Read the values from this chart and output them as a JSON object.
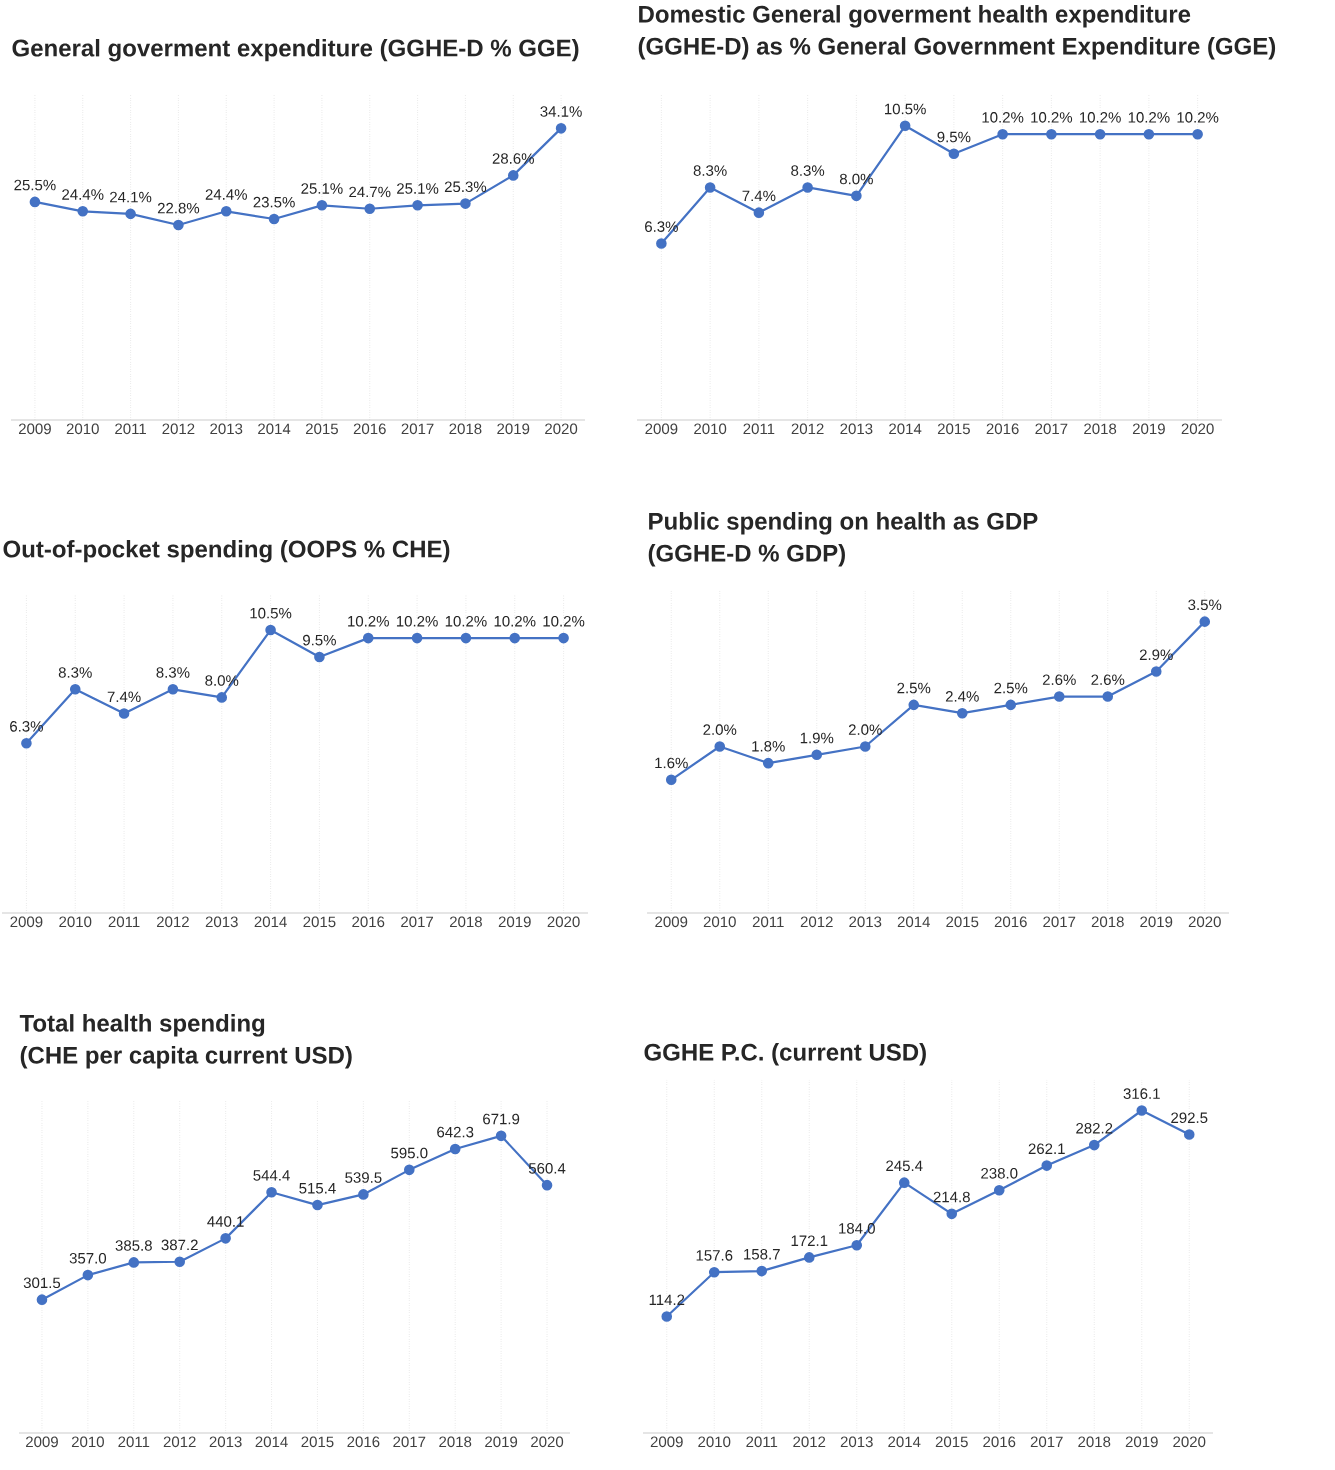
{
  "chart_data": [
    {
      "type": "line",
      "title": "General goverment expenditure (GGHE-D % GGE)",
      "categories": [
        "2009",
        "2010",
        "2011",
        "2012",
        "2013",
        "2014",
        "2015",
        "2016",
        "2017",
        "2018",
        "2019",
        "2020"
      ],
      "values": [
        25.5,
        24.4,
        24.1,
        22.8,
        24.4,
        23.5,
        25.1,
        24.7,
        25.1,
        25.3,
        28.6,
        34.1
      ],
      "value_labels": [
        "25.5%",
        "24.4%",
        "24.1%",
        "22.8%",
        "24.4%",
        "23.5%",
        "25.1%",
        "24.7%",
        "25.1%",
        "25.3%",
        "28.6%",
        "34.1%"
      ],
      "color": "#4472c4",
      "marker": "circle",
      "grid": "x",
      "ylim": [
        0,
        38
      ]
    },
    {
      "type": "line",
      "title": "Domestic General goverment health expenditure",
      "subtitle": "(GGHE-D) as % General Government Expenditure (GGE)",
      "categories": [
        "2009",
        "2010",
        "2011",
        "2012",
        "2013",
        "2014",
        "2015",
        "2016",
        "2017",
        "2018",
        "2019",
        "2020"
      ],
      "values": [
        6.3,
        8.3,
        7.4,
        8.3,
        8.0,
        10.5,
        9.5,
        10.2,
        10.2,
        10.2,
        10.2,
        10.2
      ],
      "value_labels": [
        "6.3%",
        "8.3%",
        "7.4%",
        "8.3%",
        "8.0%",
        "10.5%",
        "9.5%",
        "10.2%",
        "10.2%",
        "10.2%",
        "10.2%",
        "10.2%"
      ],
      "color": "#4472c4",
      "marker": "circle",
      "grid": "x",
      "ylim": [
        0,
        11.6
      ]
    },
    {
      "type": "line",
      "title": "Out-of-pocket spending (OOPS % CHE)",
      "categories": [
        "2009",
        "2010",
        "2011",
        "2012",
        "2013",
        "2014",
        "2015",
        "2016",
        "2017",
        "2018",
        "2019",
        "2020"
      ],
      "values": [
        6.3,
        8.3,
        7.4,
        8.3,
        8.0,
        10.5,
        9.5,
        10.2,
        10.2,
        10.2,
        10.2,
        10.2
      ],
      "value_labels": [
        "6.3%",
        "8.3%",
        "7.4%",
        "8.3%",
        "8.0%",
        "10.5%",
        "9.5%",
        "10.2%",
        "10.2%",
        "10.2%",
        "10.2%",
        "10.2%"
      ],
      "color": "#4472c4",
      "marker": "circle",
      "grid": "x",
      "ylim": [
        0,
        11.8
      ]
    },
    {
      "type": "line",
      "title": "Public spending on health as GDP",
      "subtitle": "(GGHE-D % GDP)",
      "categories": [
        "2009",
        "2010",
        "2011",
        "2012",
        "2013",
        "2014",
        "2015",
        "2016",
        "2017",
        "2018",
        "2019",
        "2020"
      ],
      "values": [
        1.6,
        2.0,
        1.8,
        1.9,
        2.0,
        2.5,
        2.4,
        2.5,
        2.6,
        2.6,
        2.9,
        3.5
      ],
      "value_labels": [
        "1.6%",
        "2.0%",
        "1.8%",
        "1.9%",
        "2.0%",
        "2.5%",
        "2.4%",
        "2.5%",
        "2.6%",
        "2.6%",
        "2.9%",
        "3.5%"
      ],
      "color": "#4472c4",
      "marker": "circle",
      "grid": "x",
      "ylim": [
        0,
        3.88
      ]
    },
    {
      "type": "line",
      "title": "Total health spending",
      "subtitle": "(CHE per capita current USD)",
      "categories": [
        "2009",
        "2010",
        "2011",
        "2012",
        "2013",
        "2014",
        "2015",
        "2016",
        "2017",
        "2018",
        "2019",
        "2020"
      ],
      "values": [
        301.5,
        357.0,
        385.8,
        387.2,
        440.1,
        544.4,
        515.4,
        539.5,
        595.0,
        642.3,
        671.9,
        560.4
      ],
      "value_labels": [
        "301.5",
        "357.0",
        "385.8",
        "387.2",
        "440.1",
        "544.4",
        "515.4",
        "539.5",
        "595.0",
        "642.3",
        "671.9",
        "560.4"
      ],
      "color": "#4472c4",
      "marker": "circle",
      "grid": "x",
      "ylim": [
        0,
        753
      ]
    },
    {
      "type": "line",
      "title": "GGHE P.C. (current USD)",
      "categories": [
        "2009",
        "2010",
        "2011",
        "2012",
        "2013",
        "2014",
        "2015",
        "2016",
        "2017",
        "2018",
        "2019",
        "2020"
      ],
      "values": [
        114.2,
        157.6,
        158.7,
        172.1,
        184.0,
        245.4,
        214.8,
        238.0,
        262.1,
        282.2,
        316.1,
        292.5
      ],
      "value_labels": [
        "114.2",
        "157.6",
        "158.7",
        "172.1",
        "184.0",
        "245.4",
        "214.8",
        "238.0",
        "262.1",
        "282.2",
        "316.1",
        "292.5"
      ],
      "color": "#4472c4",
      "marker": "circle",
      "grid": "x",
      "ylim": [
        0,
        346
      ]
    }
  ]
}
